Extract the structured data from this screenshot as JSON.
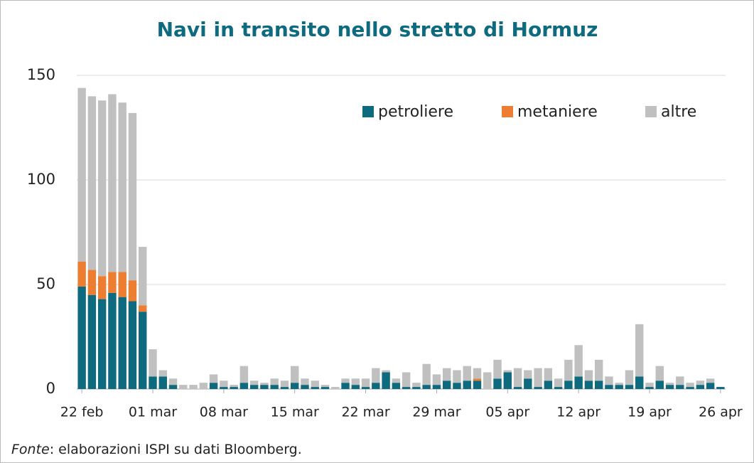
{
  "chart_data": {
    "type": "stacked_bar",
    "title": "Navi in transito nello stretto di Hormuz",
    "source_label": "Fonte",
    "source_text": ": elaborazioni ISPI su dati Bloomberg.",
    "categories": [
      "22 feb",
      null,
      null,
      null,
      null,
      null,
      null,
      "01 mar",
      null,
      null,
      null,
      null,
      null,
      null,
      "08 mar",
      null,
      null,
      null,
      null,
      null,
      null,
      "15 mar",
      null,
      null,
      null,
      null,
      null,
      null,
      "22 mar",
      null,
      null,
      null,
      null,
      null,
      null,
      "29 mar",
      null,
      null,
      null,
      null,
      null,
      null,
      "05 apr",
      null,
      null,
      null,
      null,
      null,
      null,
      "12 apr",
      null,
      null,
      null,
      null,
      null,
      null,
      "19 apr",
      null,
      null,
      null,
      null,
      null,
      null,
      "26 apr"
    ],
    "series": [
      {
        "name": "petroliere",
        "color": "#0e6a7e",
        "values": [
          49,
          45,
          43,
          46,
          44,
          42,
          37,
          6,
          6,
          2,
          0,
          0,
          0,
          3,
          1,
          1,
          3,
          2,
          2,
          2,
          1,
          3,
          2,
          1,
          1,
          0,
          3,
          2,
          1,
          3,
          8,
          3,
          1,
          1,
          2,
          2,
          4,
          3,
          4,
          4,
          0,
          5,
          8,
          1,
          5,
          1,
          4,
          1,
          4,
          6,
          4,
          4,
          2,
          2,
          2,
          6,
          1,
          4,
          2,
          2,
          1,
          2,
          3,
          1
        ]
      },
      {
        "name": "metaniere",
        "color": "#ed7d31",
        "values": [
          12,
          12,
          11,
          10,
          12,
          10,
          3,
          0,
          0,
          0,
          0,
          0,
          0,
          0,
          0,
          0,
          0,
          0,
          0,
          0,
          0,
          0,
          0,
          0,
          0,
          0,
          0,
          0,
          0,
          0,
          0,
          0,
          0,
          0,
          0,
          0,
          0,
          0,
          0,
          1,
          0,
          0,
          0,
          0,
          0,
          0,
          0,
          0,
          0,
          0,
          0,
          0,
          0,
          0,
          0,
          0,
          0,
          0,
          0,
          0,
          0,
          0,
          0,
          0
        ]
      },
      {
        "name": "altre",
        "color": "#c0c0c0",
        "values": [
          83,
          83,
          84,
          85,
          81,
          80,
          28,
          13,
          3,
          3,
          2,
          2,
          3,
          4,
          3,
          1,
          8,
          2,
          1,
          3,
          3,
          8,
          3,
          3,
          1,
          1,
          2,
          3,
          4,
          7,
          1,
          2,
          7,
          2,
          10,
          5,
          6,
          6,
          7,
          5,
          8,
          9,
          1,
          9,
          4,
          9,
          6,
          4,
          10,
          15,
          5,
          10,
          4,
          1,
          7,
          25,
          2,
          7,
          1,
          4,
          2,
          2,
          2,
          0
        ]
      }
    ],
    "ylim": [
      0,
      150
    ],
    "yticks": [
      0,
      50,
      100,
      150
    ],
    "grid": true,
    "legend": "upper right"
  }
}
